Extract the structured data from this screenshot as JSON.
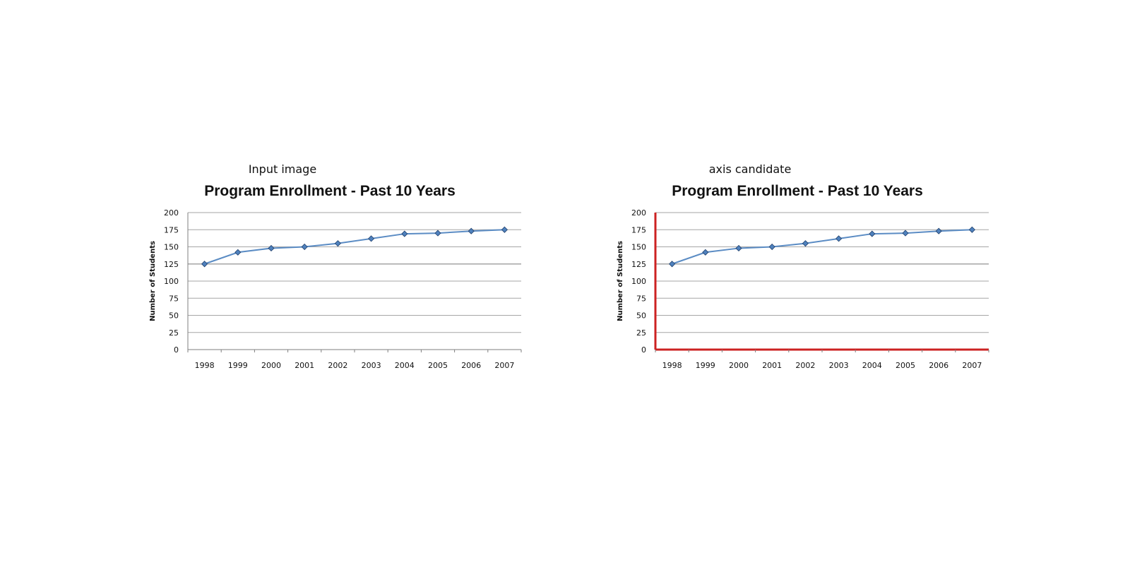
{
  "panels": [
    {
      "caption": "Input image"
    },
    {
      "caption": "axis candidate"
    }
  ],
  "colors": {
    "series_line": "#5b8cc4",
    "marker_fill": "#4f81bd",
    "marker_stroke": "#1f3f6b",
    "gridline": "#a6a6a6",
    "axis": "#7f7f7f",
    "axis_highlight": "#cc2222"
  },
  "chart_data": [
    {
      "type": "line",
      "title": "Program Enrollment - Past 10 Years",
      "xlabel": "",
      "ylabel": "Number of Students",
      "categories": [
        "1998",
        "1999",
        "2000",
        "2001",
        "2002",
        "2003",
        "2004",
        "2005",
        "2006",
        "2007"
      ],
      "series": [
        {
          "values": [
            125,
            142,
            148,
            150,
            155,
            162,
            169,
            170,
            173,
            175
          ]
        }
      ],
      "ylim": [
        0,
        200
      ],
      "yticks": [
        0,
        25,
        50,
        75,
        100,
        125,
        150,
        175,
        200
      ],
      "grid": true,
      "axis_highlight": false
    },
    {
      "type": "line",
      "title": "Program Enrollment - Past 10 Years",
      "xlabel": "",
      "ylabel": "Number of Students",
      "categories": [
        "1998",
        "1999",
        "2000",
        "2001",
        "2002",
        "2003",
        "2004",
        "2005",
        "2006",
        "2007"
      ],
      "series": [
        {
          "values": [
            125,
            142,
            148,
            150,
            155,
            162,
            169,
            170,
            173,
            175
          ]
        }
      ],
      "ylim": [
        0,
        200
      ],
      "yticks": [
        0,
        25,
        50,
        75,
        100,
        125,
        150,
        175,
        200
      ],
      "grid": true,
      "axis_highlight": true
    }
  ]
}
